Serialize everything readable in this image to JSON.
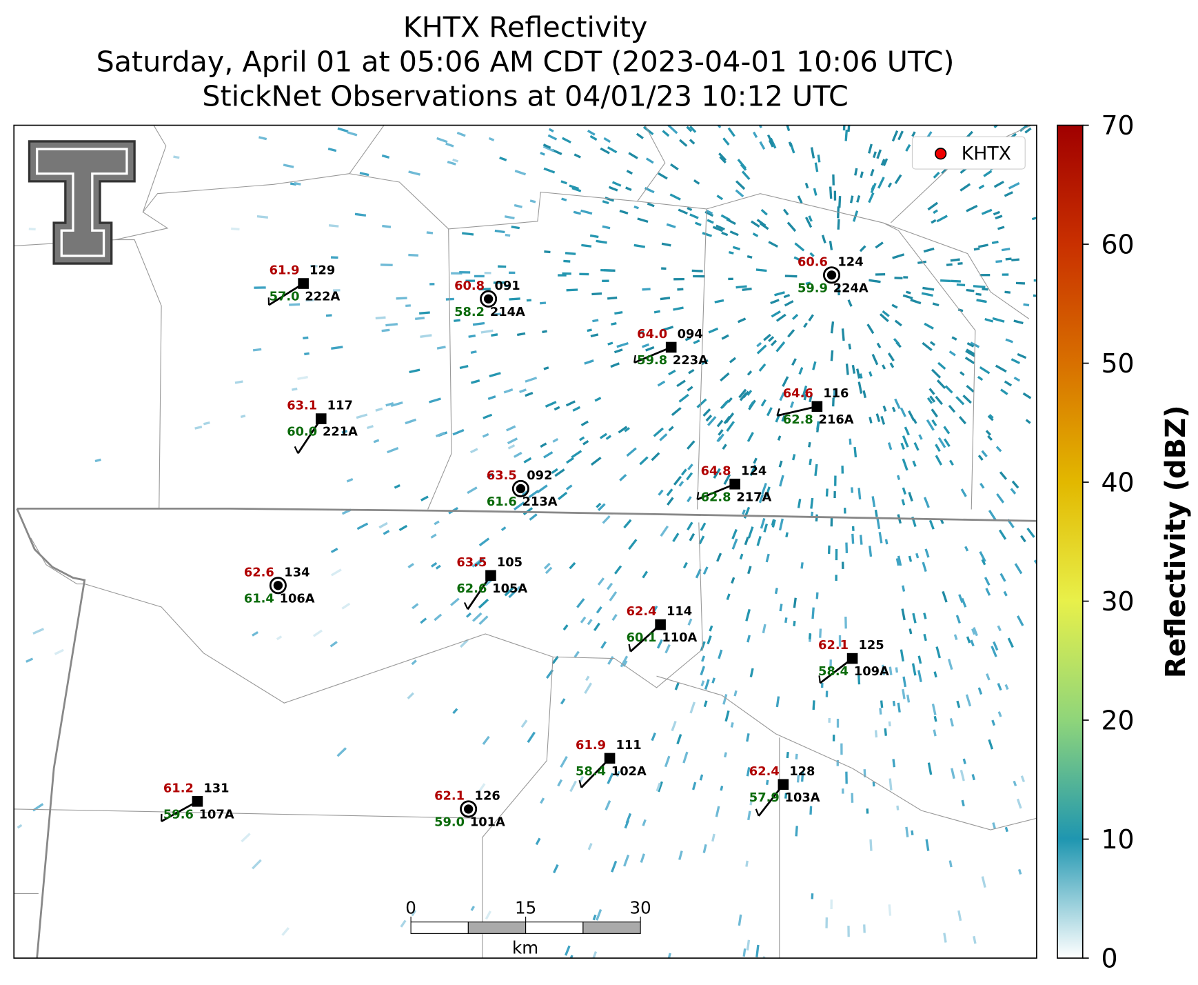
{
  "title": [
    "KHTX Reflectivity",
    "Saturday, April 01 at 05:06 AM CDT (2023-04-01 10:06 UTC)",
    "StickNet Observations at 04/01/23 10:12 UTC"
  ],
  "legend": [
    "KHTX"
  ],
  "stations": [
    {
      "id": "222A",
      "temperature": "61.9",
      "dewpoint": "57.0",
      "code": "129"
    },
    {
      "id": "214A",
      "temperature": "60.8",
      "dewpoint": "58.2",
      "code": "091"
    },
    {
      "id": "224A",
      "temperature": "60.6",
      "dewpoint": "59.9",
      "code": "124"
    },
    {
      "id": "223A",
      "temperature": "64.0",
      "dewpoint": "59.8",
      "code": "094"
    },
    {
      "id": "221A",
      "temperature": "63.1",
      "dewpoint": "60.0",
      "code": "117"
    },
    {
      "id": "216A",
      "temperature": "64.6",
      "dewpoint": "62.8",
      "code": "116"
    },
    {
      "id": "213A",
      "temperature": "63.5",
      "dewpoint": "61.6",
      "code": "092"
    },
    {
      "id": "217A",
      "temperature": "64.8",
      "dewpoint": "62.8",
      "code": "124"
    },
    {
      "id": "106A",
      "temperature": "62.6",
      "dewpoint": "61.4",
      "code": "134"
    },
    {
      "id": "105A",
      "temperature": "63.5",
      "dewpoint": "62.6",
      "code": "105"
    },
    {
      "id": "110A",
      "temperature": "62.4",
      "dewpoint": "60.1",
      "code": "114"
    },
    {
      "id": "109A",
      "temperature": "62.1",
      "dewpoint": "58.4",
      "code": "125"
    },
    {
      "id": "102A",
      "temperature": "61.9",
      "dewpoint": "58.4",
      "code": "111"
    },
    {
      "id": "103A",
      "temperature": "62.4",
      "dewpoint": "57.9",
      "code": "128"
    },
    {
      "id": "107A",
      "temperature": "61.2",
      "dewpoint": "59.6",
      "code": "131"
    },
    {
      "id": "101A",
      "temperature": "62.1",
      "dewpoint": "59.0",
      "code": "126"
    }
  ],
  "scale_bar": {
    "ticks": [
      0,
      15,
      30
    ],
    "unit": "km"
  },
  "colorbar": {
    "label": "Reflectivity (dBZ)",
    "lim": [
      0,
      70
    ],
    "ticks": [
      0,
      10,
      20,
      30,
      40,
      50,
      60,
      70
    ]
  }
}
